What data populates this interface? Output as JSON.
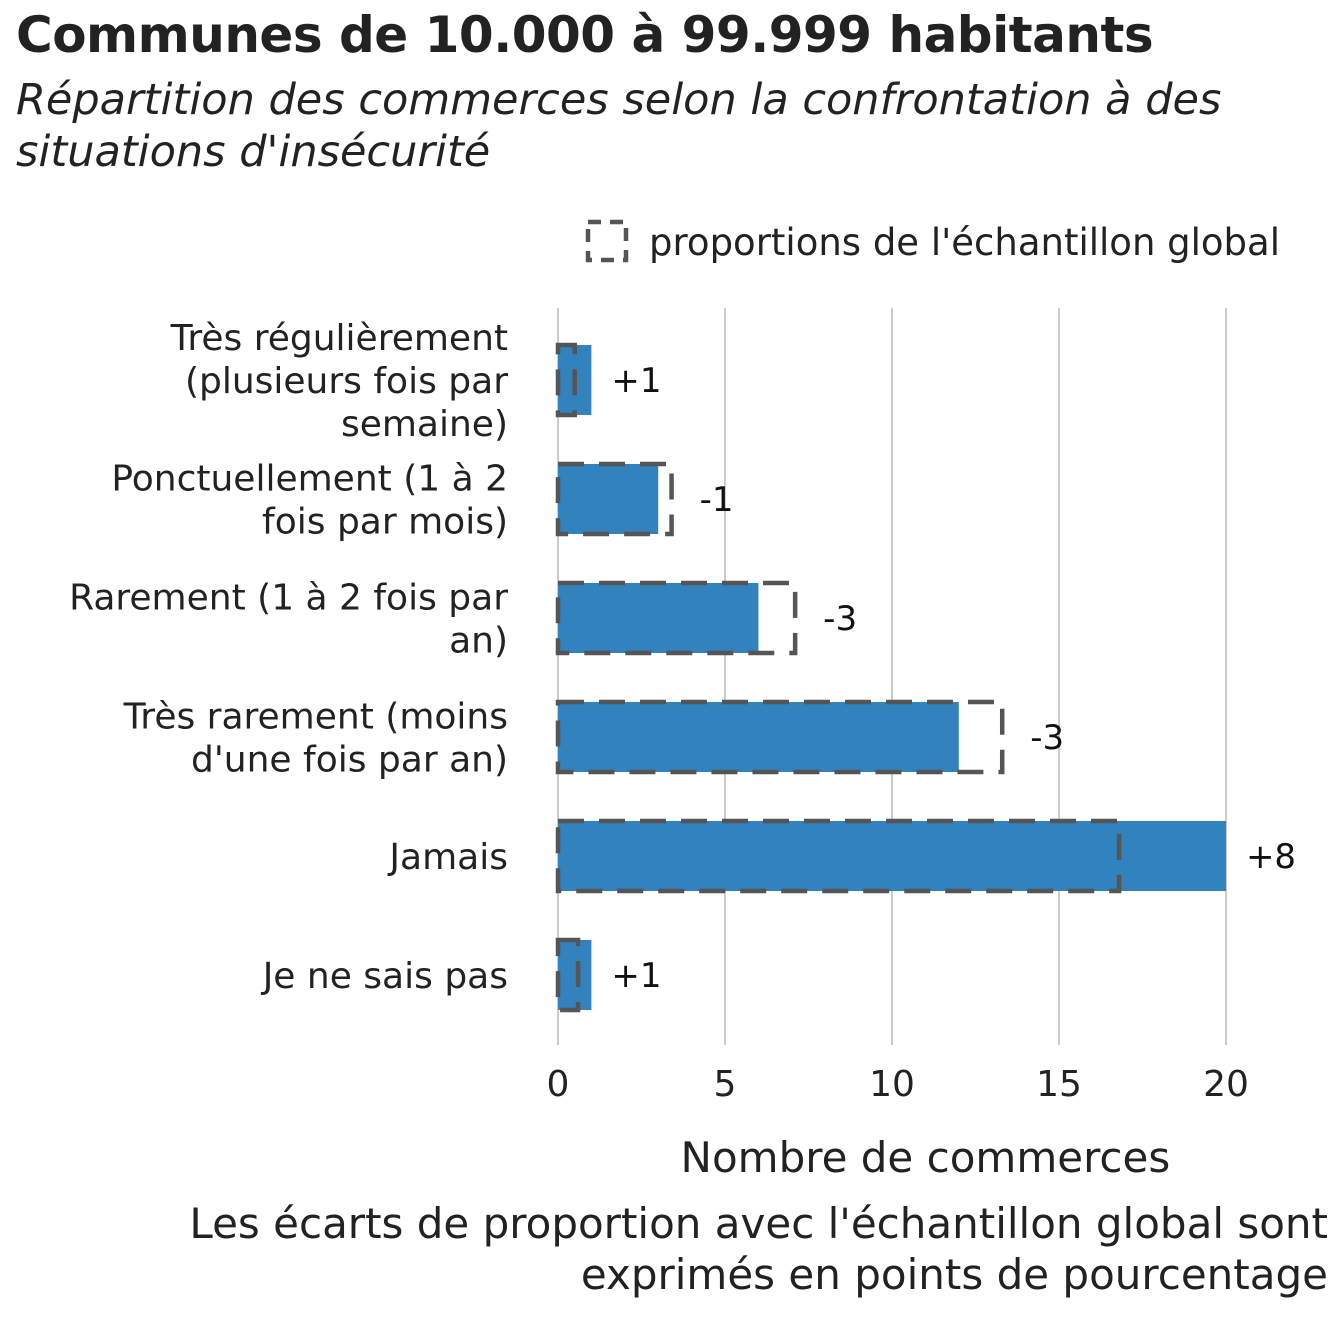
{
  "title": "Communes de 10.000 à 99.999 habitants",
  "subtitle_lines": [
    "Répartition des commerces selon la confrontation à des",
    "situations d'insécurité"
  ],
  "footnote_lines": [
    "Les écarts de proportion avec l'échantillon global sont",
    "exprimés en points de pourcentage"
  ],
  "colors": {
    "bar": "#3282BD",
    "reference_outline": "#555555",
    "grid": "#CCCCCC"
  },
  "chart_data": {
    "type": "bar",
    "orientation": "horizontal",
    "title": "Communes de 10.000 à 99.999 habitants",
    "categories": [
      [
        "Très régulièrement",
        "(plusieurs fois par",
        "semaine)"
      ],
      [
        "Ponctuellement (1 à 2",
        "fois par mois)"
      ],
      [
        "Rarement (1 à 2 fois par",
        "an)"
      ],
      [
        "Très rarement (moins",
        "d'une fois par an)"
      ],
      [
        "Jamais"
      ],
      [
        "Je ne sais pas"
      ]
    ],
    "series": [
      {
        "values": [
          1,
          3,
          6,
          12,
          20,
          1
        ]
      },
      {
        "name": "proportions de l'échantillon global",
        "values": [
          0.5,
          3.4,
          7.1,
          13.3,
          16.8,
          0.6
        ],
        "style": "dashed-outline"
      }
    ],
    "data_labels": [
      "+1",
      "-1",
      "-3",
      "-3",
      "+8",
      "+1"
    ],
    "xlabel": "Nombre de commerces",
    "xlim": [
      0,
      22
    ],
    "xticks": [
      0,
      5,
      10,
      15,
      20
    ],
    "grid": true,
    "legend_position": "top-right"
  }
}
